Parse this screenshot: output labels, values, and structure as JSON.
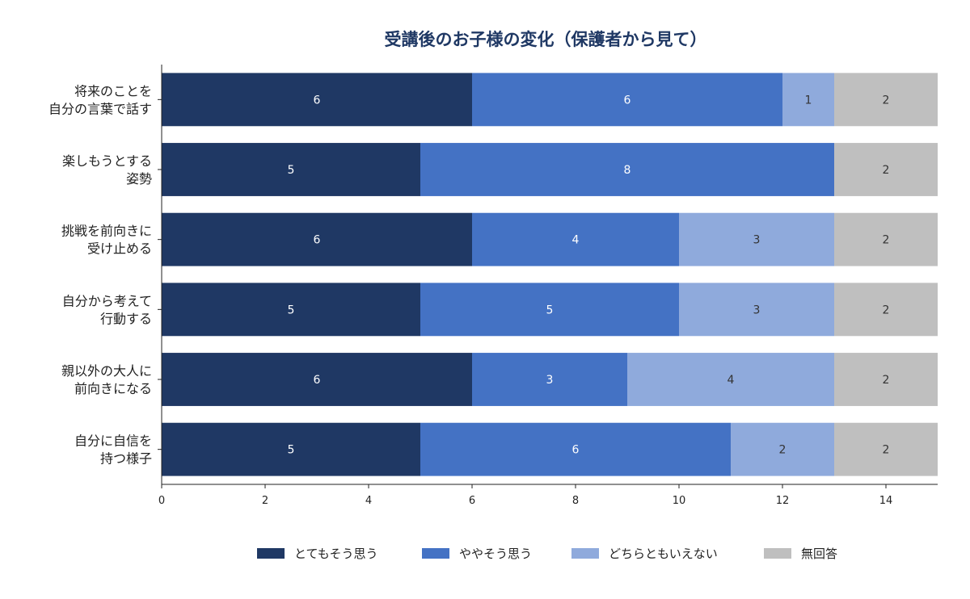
{
  "chart_data": {
    "type": "bar",
    "orientation": "horizontal",
    "stacked": true,
    "title": "受講後のお子様の変化（保護者から見て）",
    "xlabel": "",
    "ylabel": "",
    "xlim": [
      0,
      15
    ],
    "x_ticks": [
      0,
      2,
      4,
      6,
      8,
      10,
      12,
      14
    ],
    "grid": false,
    "legend_position": "bottom-center",
    "categories": [
      [
        "将来のことを",
        "自分の言葉で話す"
      ],
      [
        "楽しもうとする",
        "姿勢"
      ],
      [
        "挑戦を前向きに",
        "受け止める"
      ],
      [
        "自分から考えて",
        "行動する"
      ],
      [
        "親以外の大人に",
        "前向きになる"
      ],
      [
        "自分に自信を",
        "持つ様子"
      ]
    ],
    "series": [
      {
        "name": "とてもそう思う",
        "color": "#1f3864",
        "label_color": "#ffffff",
        "values": [
          6,
          5,
          6,
          5,
          6,
          5
        ]
      },
      {
        "name": "ややそう思う",
        "color": "#4472c4",
        "label_color": "#ffffff",
        "values": [
          6,
          8,
          4,
          5,
          3,
          6
        ]
      },
      {
        "name": "どちらともいえない",
        "color": "#8faadc",
        "label_color": "#333333",
        "values": [
          1,
          0,
          3,
          3,
          4,
          2
        ]
      },
      {
        "name": "無回答",
        "color": "#bfbfbf",
        "label_color": "#333333",
        "values": [
          2,
          2,
          2,
          2,
          2,
          2
        ]
      }
    ]
  }
}
